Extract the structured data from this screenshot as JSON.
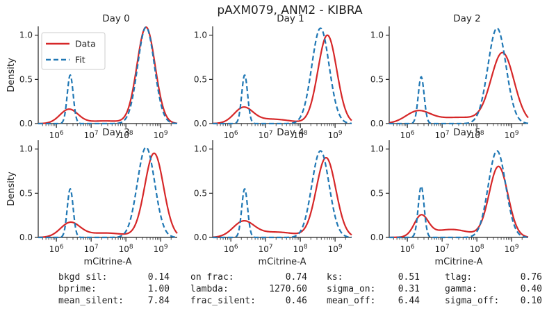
{
  "title": "pAXM079, ANM2 - KIBRA",
  "colors": {
    "data": "#d62728",
    "fit": "#1f77b4",
    "axis": "#222222"
  },
  "legend": {
    "placement": "top-left",
    "items": [
      "Data",
      "Fit"
    ]
  },
  "chart_data": [
    {
      "type": "line",
      "title": "Day 0",
      "xlabel": "",
      "ylabel": "Density",
      "xscale": "log",
      "xlim": [
        300000,
        3000000000
      ],
      "ylim": [
        0,
        1.1
      ],
      "xtick_labels": [
        "10^6",
        "10^7",
        "10^8",
        "10^9"
      ],
      "ytick_labels": [
        "0.0",
        "0.5",
        "1.0"
      ],
      "series": [
        {
          "name": "Data",
          "style": "solid",
          "baseline": 0,
          "peaks": [
            [
              2300000,
              0.16,
              0.26
            ],
            [
              25000000,
              0.03,
              0.5
            ],
            [
              380000000,
              1.09,
              0.26
            ]
          ]
        },
        {
          "name": "Fit",
          "style": "dashed",
          "baseline": 0,
          "peaks": [
            [
              2500000,
              0.55,
              0.085
            ],
            [
              380000000,
              1.09,
              0.24
            ]
          ]
        }
      ]
    },
    {
      "type": "line",
      "title": "Day 1",
      "xlabel": "",
      "ylabel": "",
      "xscale": "log",
      "xlim": [
        300000,
        3000000000
      ],
      "ylim": [
        0,
        1.1
      ],
      "xtick_labels": [
        "10^6",
        "10^7",
        "10^8",
        "10^9"
      ],
      "ytick_labels": [
        "0.0",
        "0.5",
        "1.0"
      ],
      "series": [
        {
          "name": "Data",
          "style": "solid",
          "baseline": 0,
          "peaks": [
            [
              2300000,
              0.17,
              0.27
            ],
            [
              15000000,
              0.05,
              0.55
            ],
            [
              600000000,
              1.0,
              0.27
            ]
          ]
        },
        {
          "name": "Fit",
          "style": "dashed",
          "baseline": 0,
          "peaks": [
            [
              2500000,
              0.55,
              0.085
            ],
            [
              380000000,
              1.08,
              0.25
            ]
          ]
        }
      ]
    },
    {
      "type": "line",
      "title": "Day 2",
      "xlabel": "",
      "ylabel": "",
      "xscale": "log",
      "xlim": [
        300000,
        3000000000
      ],
      "ylim": [
        0,
        1.1
      ],
      "xtick_labels": [
        "10^6",
        "10^7",
        "10^8",
        "10^9"
      ],
      "ytick_labels": [
        "0.0",
        "0.5",
        "1.0"
      ],
      "series": [
        {
          "name": "Data",
          "style": "solid",
          "baseline": 0,
          "peaks": [
            [
              2000000,
              0.13,
              0.35
            ],
            [
              30000000,
              0.07,
              0.7
            ],
            [
              550000000,
              0.79,
              0.33
            ]
          ]
        },
        {
          "name": "Fit",
          "style": "dashed",
          "baseline": 0,
          "peaks": [
            [
              2500000,
              0.53,
              0.085
            ],
            [
              380000000,
              1.08,
              0.26
            ]
          ]
        }
      ]
    },
    {
      "type": "line",
      "title": "Day 3",
      "xlabel": "mCitrine-A",
      "ylabel": "Density",
      "xscale": "log",
      "xlim": [
        300000,
        3000000000
      ],
      "ylim": [
        0,
        1.1
      ],
      "xtick_labels": [
        "10^6",
        "10^7",
        "10^8",
        "10^9"
      ],
      "ytick_labels": [
        "0.0",
        "0.5",
        "1.0"
      ],
      "series": [
        {
          "name": "Data",
          "style": "solid",
          "baseline": 0,
          "peaks": [
            [
              2500000,
              0.16,
              0.28
            ],
            [
              25000000,
              0.05,
              0.6
            ],
            [
              650000000,
              0.95,
              0.27
            ]
          ]
        },
        {
          "name": "Fit",
          "style": "dashed",
          "baseline": 0,
          "peaks": [
            [
              2500000,
              0.55,
              0.085
            ],
            [
              380000000,
              1.02,
              0.25
            ]
          ]
        }
      ]
    },
    {
      "type": "line",
      "title": "Day 4",
      "xlabel": "mCitrine-A",
      "ylabel": "",
      "xscale": "log",
      "xlim": [
        300000,
        3000000000
      ],
      "ylim": [
        0,
        1.1
      ],
      "xtick_labels": [
        "10^6",
        "10^7",
        "10^8",
        "10^9"
      ],
      "ytick_labels": [
        "0.0",
        "0.5",
        "1.0"
      ],
      "series": [
        {
          "name": "Data",
          "style": "solid",
          "baseline": 0,
          "peaks": [
            [
              2300000,
              0.17,
              0.3
            ],
            [
              20000000,
              0.06,
              0.6
            ],
            [
              550000000,
              0.9,
              0.28
            ]
          ]
        },
        {
          "name": "Fit",
          "style": "dashed",
          "baseline": 0,
          "peaks": [
            [
              2500000,
              0.55,
              0.085
            ],
            [
              380000000,
              0.98,
              0.25
            ]
          ]
        }
      ]
    },
    {
      "type": "line",
      "title": "Day 5",
      "xlabel": "mCitrine-A",
      "ylabel": "",
      "xscale": "log",
      "xlim": [
        300000,
        3000000000
      ],
      "ylim": [
        0,
        1.1
      ],
      "xtick_labels": [
        "10^6",
        "10^7",
        "10^8",
        "10^9"
      ],
      "ytick_labels": [
        "0.0",
        "0.5",
        "1.0"
      ],
      "series": [
        {
          "name": "Data",
          "style": "solid",
          "baseline": 0,
          "peaks": [
            [
              2500000,
              0.23,
              0.2
            ],
            [
              18000000,
              0.09,
              0.55
            ],
            [
              420000000,
              0.8,
              0.27
            ]
          ]
        },
        {
          "name": "Fit",
          "style": "dashed",
          "baseline": 0,
          "peaks": [
            [
              2500000,
              0.58,
              0.085
            ],
            [
              380000000,
              0.98,
              0.25
            ]
          ]
        }
      ]
    }
  ],
  "stats": [
    {
      "label": "bkgd sil:",
      "value": "0.14"
    },
    {
      "label": "bprime:",
      "value": "1.00"
    },
    {
      "label": "mean_silent:",
      "value": "7.84"
    },
    {
      "label": "on frac:",
      "value": "0.74"
    },
    {
      "label": "lambda:",
      "value": "1270.60"
    },
    {
      "label": "frac_silent:",
      "value": "0.46"
    },
    {
      "label": "ks:",
      "value": "0.51"
    },
    {
      "label": "sigma_on:",
      "value": "0.31"
    },
    {
      "label": "mean_off:",
      "value": "6.44"
    },
    {
      "label": "tlag:",
      "value": "0.76"
    },
    {
      "label": "gamma:",
      "value": "0.40"
    },
    {
      "label": "sigma_off:",
      "value": "0.10"
    }
  ]
}
